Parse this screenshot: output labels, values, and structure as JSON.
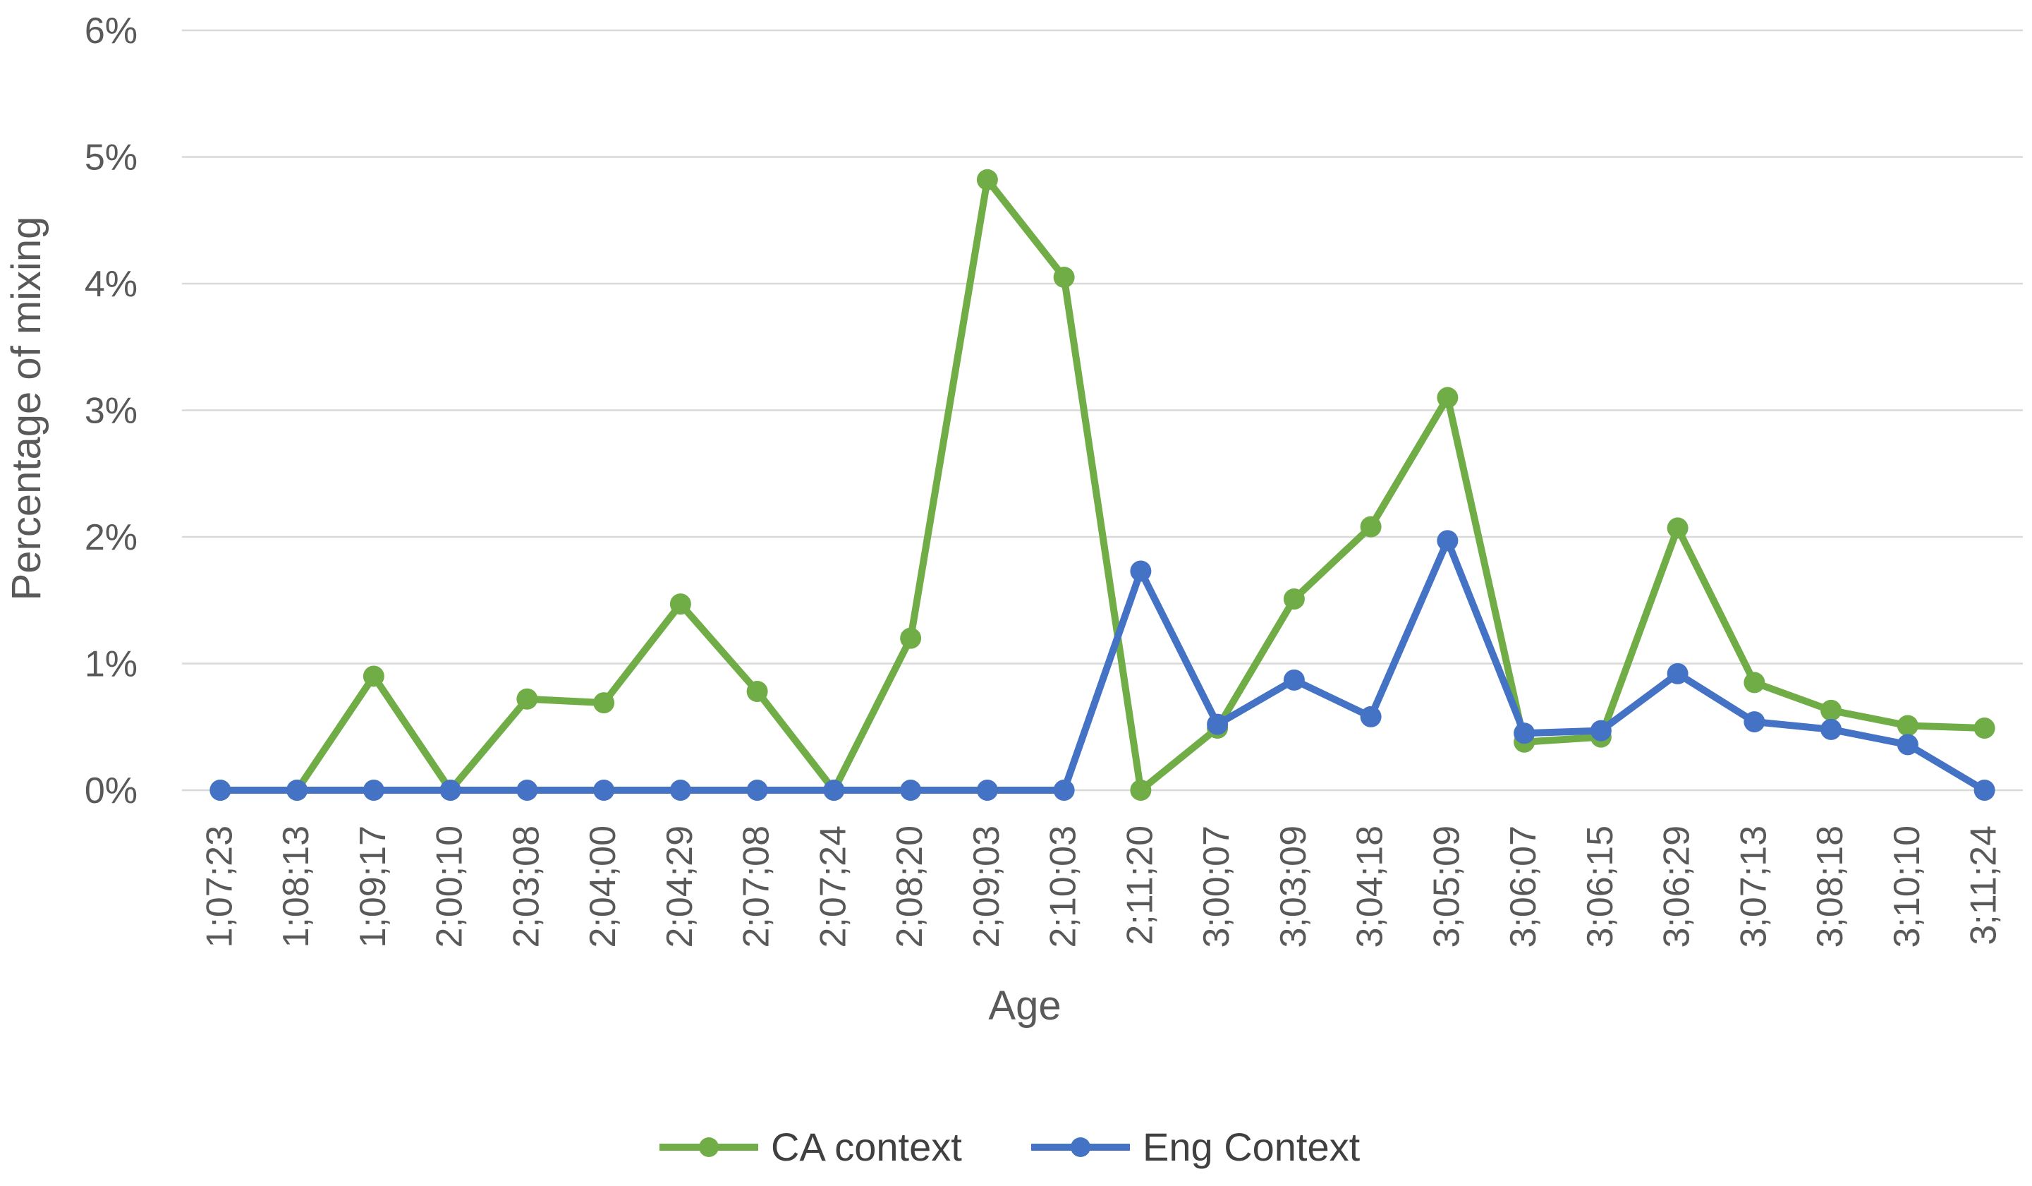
{
  "chart_data": {
    "type": "line",
    "xlabel": "Age",
    "ylabel": "Percentage of mixing",
    "ylim": [
      0,
      6
    ],
    "yticks": [
      "0%",
      "1%",
      "2%",
      "3%",
      "4%",
      "5%",
      "6%"
    ],
    "grid": true,
    "legend_position": "bottom",
    "categories": [
      "1;07;23",
      "1;08;13",
      "1;09;17",
      "2;00;10",
      "2;03;08",
      "2;04;00",
      "2;04;29",
      "2;07;08",
      "2;07;24",
      "2;08;20",
      "2;09;03",
      "2;10;03",
      "2;11;20",
      "3;00;07",
      "3;03;09",
      "3;04;18",
      "3;05;09",
      "3;06;07",
      "3;06;15",
      "3;06;29",
      "3;07;13",
      "3;08;18",
      "3;10;10",
      "3;11;24"
    ],
    "series": [
      {
        "name": "CA context",
        "color": "#70ad47",
        "values": [
          0,
          0,
          0.9,
          0,
          0.72,
          0.69,
          1.47,
          0.78,
          0,
          1.2,
          4.82,
          4.05,
          0,
          0.49,
          1.51,
          2.08,
          3.1,
          0.38,
          0.42,
          2.07,
          0.85,
          0.63,
          0.51,
          0.49
        ]
      },
      {
        "name": "Eng Context",
        "color": "#4472c4",
        "values": [
          0,
          0,
          0,
          0,
          0,
          0,
          0,
          0,
          0,
          0,
          0,
          0,
          1.73,
          0.52,
          0.87,
          0.58,
          1.97,
          0.45,
          0.47,
          0.92,
          0.54,
          0.48,
          0.36,
          0
        ]
      }
    ]
  }
}
